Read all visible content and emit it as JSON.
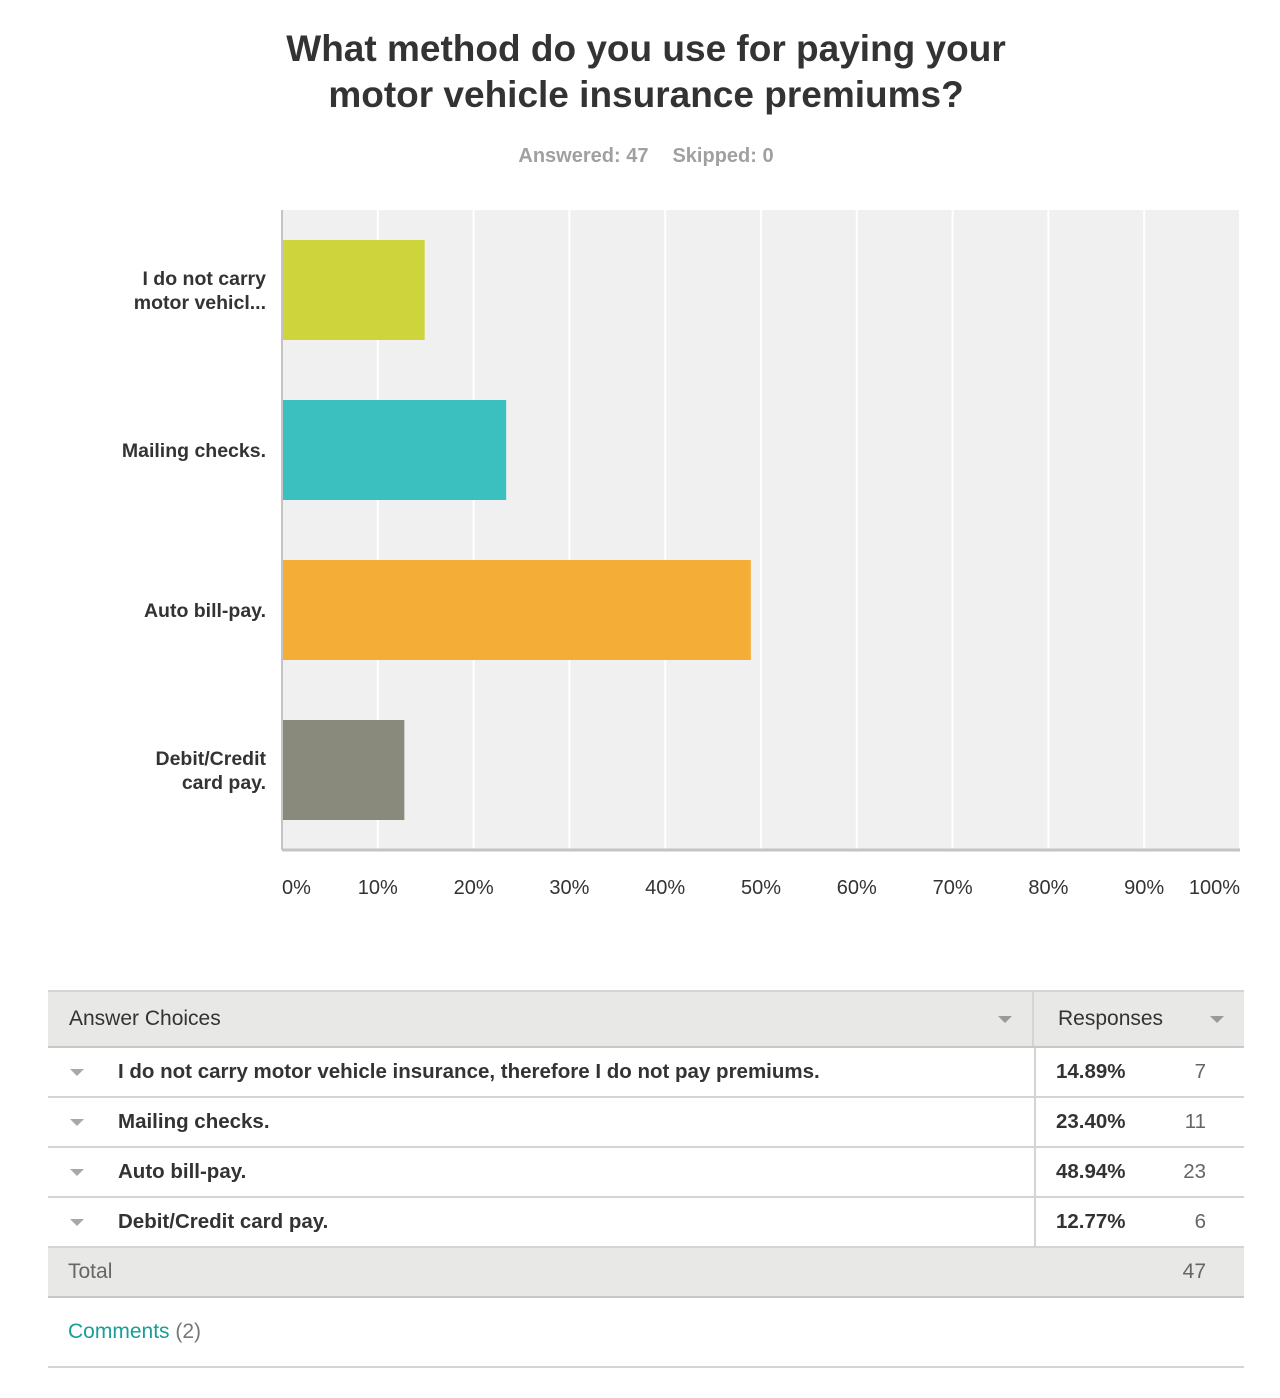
{
  "title_lines": [
    "What method do you use for paying your",
    "motor vehicle insurance premiums?"
  ],
  "stats": {
    "answered": "Answered: 47",
    "skipped": "Skipped: 0"
  },
  "chart_data": {
    "type": "bar",
    "orientation": "horizontal",
    "categories": [
      [
        "I do not carry",
        "motor vehicl..."
      ],
      [
        "Mailing checks."
      ],
      [
        "Auto bill-pay."
      ],
      [
        "Debit/Credit",
        "card pay."
      ]
    ],
    "values": [
      14.89,
      23.4,
      48.94,
      12.77
    ],
    "colors": [
      "#cdd43c",
      "#3bbfbf",
      "#f4ad36",
      "#8a8a7c"
    ],
    "x_ticks": [
      "0%",
      "10%",
      "20%",
      "30%",
      "40%",
      "50%",
      "60%",
      "70%",
      "80%",
      "90%",
      "100%"
    ],
    "xlim": [
      0,
      100
    ],
    "grid": true,
    "background": "#f0f0f0"
  },
  "table": {
    "header_choice": "Answer Choices",
    "header_responses": "Responses",
    "rows": [
      {
        "choice": "I do not carry motor vehicle insurance, therefore I do not pay premiums.",
        "percent": "14.89%",
        "count": "7"
      },
      {
        "choice": "Mailing checks.",
        "percent": "23.40%",
        "count": "11"
      },
      {
        "choice": "Auto bill-pay.",
        "percent": "48.94%",
        "count": "23"
      },
      {
        "choice": "Debit/Credit card pay.",
        "percent": "12.77%",
        "count": "6"
      }
    ],
    "total_label": "Total",
    "total_value": "47"
  },
  "comments": {
    "link": "Comments",
    "count": "(2)"
  }
}
